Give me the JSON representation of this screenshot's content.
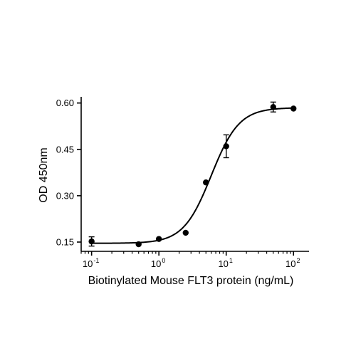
{
  "chart_data": {
    "type": "scatter",
    "title": "",
    "xlabel": "Biotinylated Mouse FLT3 protein (ng/mL)",
    "ylabel": "OD 450nm",
    "x_scale": "log",
    "xlim": [
      0.07,
      170
    ],
    "ylim": [
      0.12,
      0.62
    ],
    "x_ticks": [
      {
        "value": 0.1,
        "base": "10",
        "exp": "-1"
      },
      {
        "value": 1,
        "base": "10",
        "exp": "0"
      },
      {
        "value": 10,
        "base": "10",
        "exp": "1"
      },
      {
        "value": 100,
        "base": "10",
        "exp": "2"
      }
    ],
    "y_ticks": [
      {
        "value": 0.15,
        "label": "0.15"
      },
      {
        "value": 0.3,
        "label": "0.30"
      },
      {
        "value": 0.45,
        "label": "0.45"
      },
      {
        "value": 0.6,
        "label": "0.60"
      }
    ],
    "grid": false,
    "points": [
      {
        "x": 0.1,
        "y": 0.152,
        "err": 0.015
      },
      {
        "x": 0.5,
        "y": 0.143,
        "err": 0
      },
      {
        "x": 1,
        "y": 0.16,
        "err": 0
      },
      {
        "x": 2.5,
        "y": 0.18,
        "err": 0
      },
      {
        "x": 5,
        "y": 0.343,
        "err": 0
      },
      {
        "x": 10,
        "y": 0.46,
        "err": 0.037
      },
      {
        "x": 50,
        "y": 0.587,
        "err": 0.016
      },
      {
        "x": 100,
        "y": 0.582,
        "err": 0
      }
    ],
    "fit": {
      "model": "4PL",
      "bottom": 0.146,
      "top": 0.585,
      "ec50": 6.0,
      "hill": 2.1
    }
  }
}
